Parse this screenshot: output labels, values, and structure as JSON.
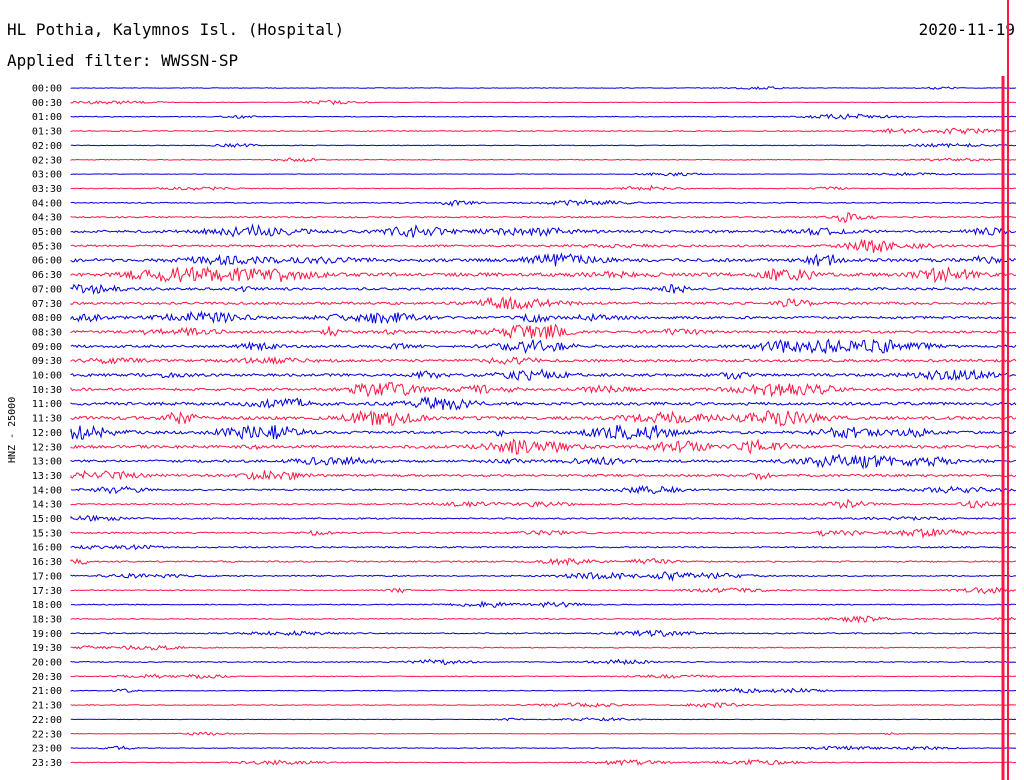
{
  "header": {
    "station": "HL Pothia, Kalymnos Isl. (Hospital)",
    "filter": "Applied filter: WWSSN-SP",
    "date": "2020-11-19"
  },
  "chart_data": {
    "type": "helicorder",
    "ylabel": "HNZ - 25000",
    "colors": {
      "a": "#0000dd",
      "b": "#ff1744"
    },
    "rows": [
      "00:00",
      "00:30",
      "01:00",
      "01:30",
      "02:00",
      "02:30",
      "03:00",
      "03:30",
      "04:00",
      "04:30",
      "05:00",
      "05:30",
      "06:00",
      "06:30",
      "07:00",
      "07:30",
      "08:00",
      "08:30",
      "09:00",
      "09:30",
      "10:00",
      "10:30",
      "11:00",
      "11:30",
      "12:00",
      "12:30",
      "13:00",
      "13:30",
      "14:00",
      "14:30",
      "15:00",
      "15:30",
      "16:00",
      "16:30",
      "17:00",
      "17:30",
      "18:00",
      "18:30",
      "19:00",
      "19:30",
      "20:00",
      "20:30",
      "21:00",
      "21:30",
      "22:00",
      "22:30",
      "23:00",
      "23:30"
    ],
    "amplitude": [
      0.2,
      0.2,
      0.3,
      0.4,
      0.3,
      0.3,
      0.2,
      0.3,
      0.4,
      0.6,
      1.0,
      0.8,
      1.3,
      1.4,
      1.0,
      1.0,
      1.0,
      1.0,
      1.0,
      1.1,
      1.1,
      1.0,
      1.2,
      1.3,
      1.1,
      1.2,
      1.0,
      0.9,
      0.6,
      0.6,
      0.6,
      0.6,
      0.6,
      0.6,
      0.5,
      0.4,
      0.4,
      0.4,
      0.5,
      0.4,
      0.4,
      0.3,
      0.3,
      0.3,
      0.2,
      0.2,
      0.3,
      0.3
    ]
  }
}
